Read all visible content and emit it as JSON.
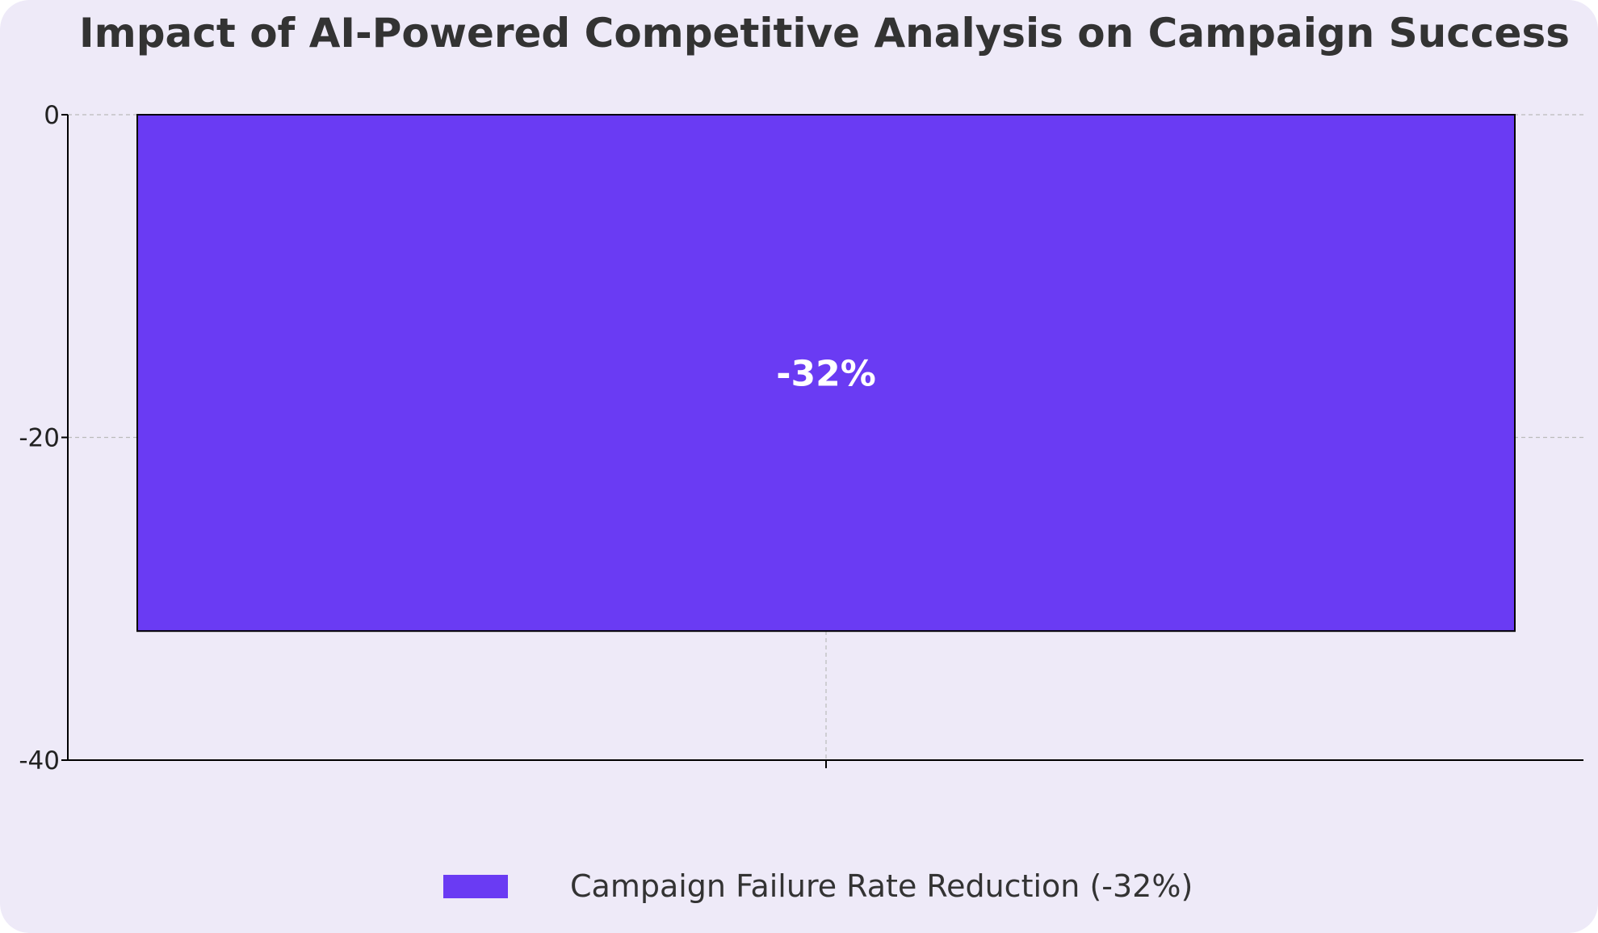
{
  "colors": {
    "background": "#EEEAF8",
    "bar": "#6A3BF3",
    "axis": "#000000",
    "grid": "#BBBBBB",
    "title": "#333333"
  },
  "chart_data": {
    "type": "bar",
    "title": "Impact of AI-Powered Competitive Analysis on Campaign Success",
    "xlabel": "",
    "ylabel": "",
    "categories": [
      ""
    ],
    "series": [
      {
        "name": "Campaign Failure Rate Reduction (-32%)",
        "values": [
          -32
        ]
      }
    ],
    "data_labels": [
      "-32%"
    ],
    "ylim": [
      -40,
      0
    ],
    "yticks": [
      0,
      -20,
      -40
    ],
    "ytick_labels": [
      "0",
      "-20",
      "-40"
    ],
    "grid": true,
    "legend": "bottom-center"
  }
}
